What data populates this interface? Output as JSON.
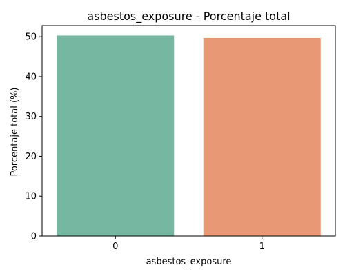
{
  "chart_data": {
    "type": "bar",
    "title": "asbestos_exposure - Porcentaje total",
    "xlabel": "asbestos_exposure",
    "ylabel": "Porcentaje total (%)",
    "categories": [
      "0",
      "1"
    ],
    "values": [
      50.3,
      49.7
    ],
    "ylim": [
      0,
      52.8
    ],
    "yticks": [
      "0",
      "10",
      "20",
      "30",
      "40",
      "50"
    ],
    "colors": [
      "#76b7a2",
      "#e99875"
    ],
    "grid": false,
    "legend": "none"
  }
}
